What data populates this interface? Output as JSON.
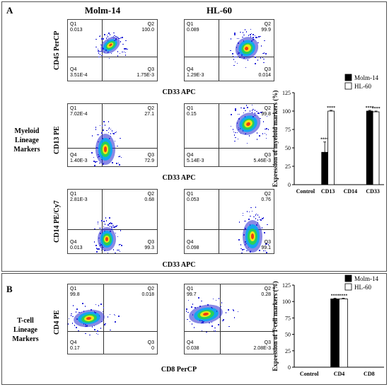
{
  "panel_a": {
    "letter": "A",
    "col_titles": [
      "Molm-14",
      "HL-60"
    ],
    "side_label": [
      "Myeloid",
      "Lineage",
      "Markers"
    ],
    "rows": [
      {
        "ylabel": "CD45 PerCP",
        "xlabel": "CD33 APC",
        "plots": [
          {
            "q1_name": "Q1",
            "q1": "0.013",
            "q2_name": "Q2",
            "q2": "100.0",
            "q3_name": "Q3",
            "q3": "1.75E-3",
            "q4_name": "Q4",
            "q4": "3.51E-4"
          },
          {
            "q1_name": "Q1",
            "q1": "0.089",
            "q2_name": "Q2",
            "q2": "99.9",
            "q3_name": "Q3",
            "q3": "0.014",
            "q4_name": "Q4",
            "q4": "1.29E-3"
          }
        ]
      },
      {
        "ylabel": "CD13 PE",
        "xlabel": "CD33 APC",
        "plots": [
          {
            "q1_name": "Q1",
            "q1": "7.02E-4",
            "q2_name": "Q2",
            "q2": "27.1",
            "q3_name": "Q3",
            "q3": "72.9",
            "q4_name": "Q4",
            "q4": "1.40E-3"
          },
          {
            "q1_name": "Q1",
            "q1": "0.15",
            "q2_name": "Q2",
            "q2": "99.8",
            "q3_name": "Q3",
            "q3": "5.46E-3",
            "q4_name": "Q4",
            "q4": "5.14E-3"
          }
        ]
      },
      {
        "ylabel": "CD14 PE/Cy7",
        "xlabel": "CD33 APC",
        "plots": [
          {
            "q1_name": "Q1",
            "q1": "2.81E-3",
            "q2_name": "Q2",
            "q2": "0.68",
            "q3_name": "Q3",
            "q3": "99.3",
            "q4_name": "Q4",
            "q4": "0.013"
          },
          {
            "q1_name": "Q1",
            "q1": "0.053",
            "q2_name": "Q2",
            "q2": "0.76",
            "q3_name": "Q3",
            "q3": "99.1",
            "q4_name": "Q4",
            "q4": "0.098"
          }
        ]
      }
    ]
  },
  "panel_b": {
    "letter": "B",
    "side_label": [
      "T-cell",
      "Lineage",
      "Markers"
    ],
    "ylabel": "CD4 PE",
    "xlabel": "CD8 PerCP",
    "plots": [
      {
        "q1_name": "Q1",
        "q1": "99.8",
        "q2_name": "Q2",
        "q2": "0.018",
        "q3_name": "Q3",
        "q3": "0",
        "q4_name": "Q4",
        "q4": "0.17"
      },
      {
        "q1_name": "Q1",
        "q1": "99.7",
        "q2_name": "Q2",
        "q2": "0.28",
        "q3_name": "Q3",
        "q3": "2.08E-3",
        "q4_name": "Q4",
        "q4": "0.038"
      }
    ]
  },
  "colors": {
    "molm14": "#000000",
    "hl60": "#ffffff",
    "stroke": "#000000"
  },
  "chart_data": [
    {
      "type": "bar",
      "title": "",
      "xlabel": "",
      "ylabel": "Expression of myeloid markers (%)",
      "categories": [
        "Control",
        "CD13",
        "CD14",
        "CD33"
      ],
      "series": [
        {
          "name": "Molm-14",
          "values": [
            0,
            44,
            0,
            100
          ],
          "errors": [
            0,
            14,
            0,
            1
          ]
        },
        {
          "name": "HL-60",
          "values": [
            0,
            100,
            0,
            99
          ],
          "errors": [
            0,
            1,
            0,
            1
          ]
        }
      ],
      "significance": [
        "",
        "****",
        "",
        "****"
      ],
      "ylim": [
        0,
        125
      ],
      "yticks": [
        0,
        25,
        50,
        75,
        100,
        125
      ],
      "legend": "top-right"
    },
    {
      "type": "bar",
      "title": "",
      "xlabel": "",
      "ylabel": "Expression of T-cell markers (%)",
      "categories": [
        "Control",
        "CD4",
        "CD8"
      ],
      "series": [
        {
          "name": "Molm-14",
          "values": [
            0,
            104,
            0
          ],
          "errors": [
            0,
            1,
            0
          ]
        },
        {
          "name": "HL-60",
          "values": [
            0,
            104,
            0
          ],
          "errors": [
            0,
            1,
            0
          ]
        }
      ],
      "significance": [
        "",
        "****",
        ""
      ],
      "ylim": [
        0,
        125
      ],
      "yticks": [
        0,
        25,
        50,
        75,
        100,
        125
      ],
      "legend": "top-right"
    }
  ]
}
